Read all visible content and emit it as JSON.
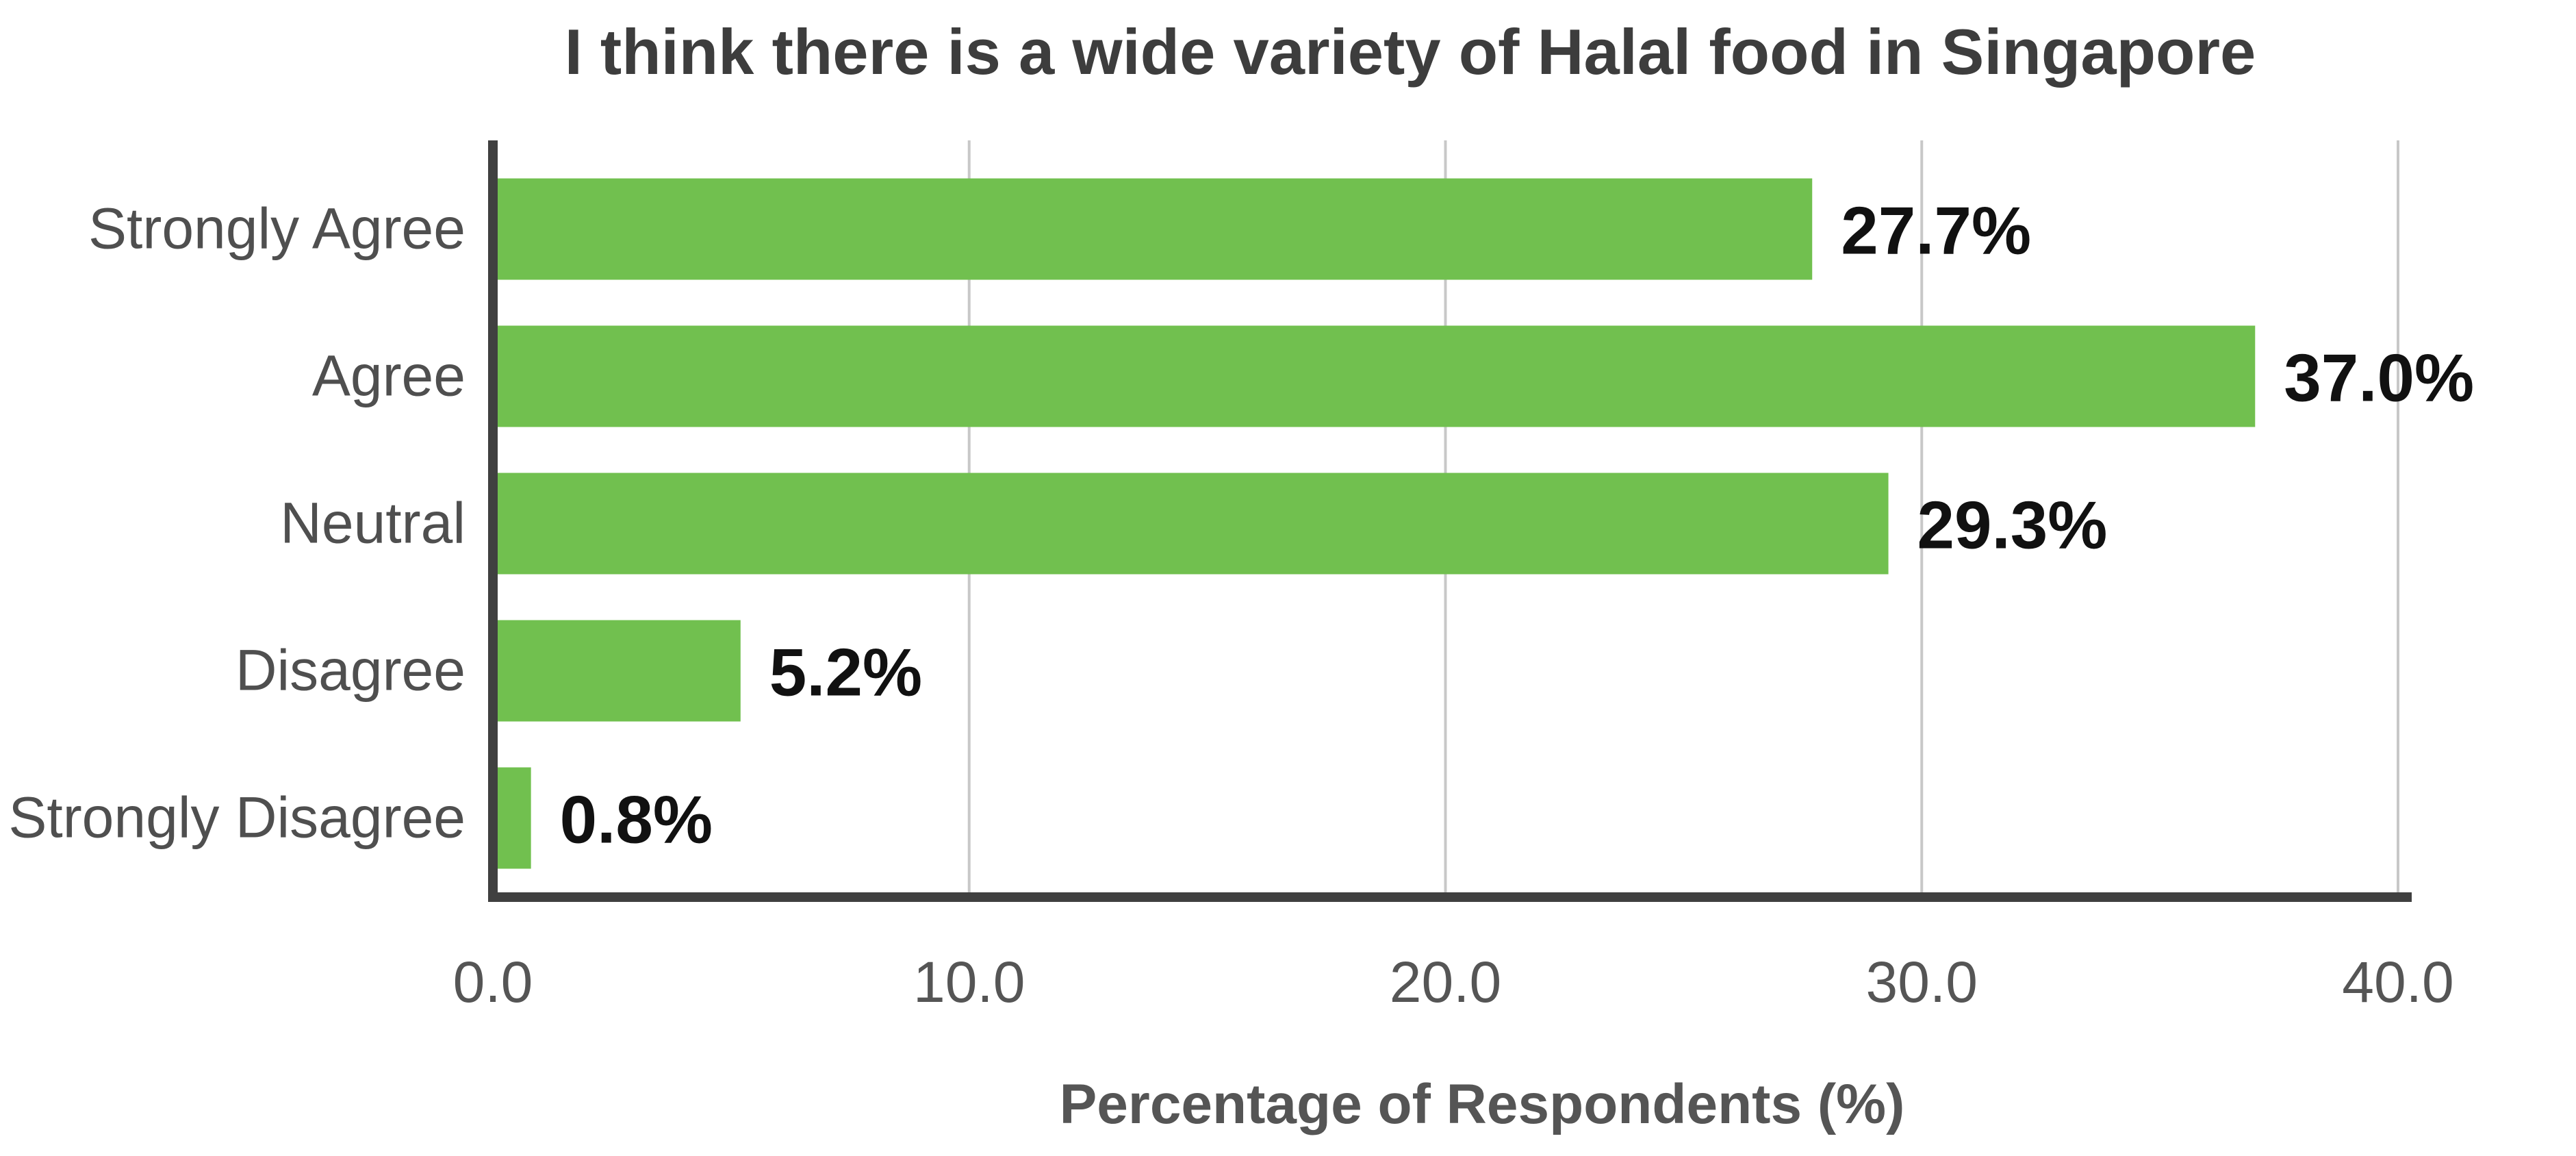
{
  "chart_data": {
    "type": "bar",
    "orientation": "horizontal",
    "title": "I think there is a wide variety of Halal food in Singapore",
    "xlabel": "Percentage of Respondents (%)",
    "ylabel": "",
    "categories": [
      "Strongly Agree",
      "Agree",
      "Neutral",
      "Disagree",
      "Strongly Disagree"
    ],
    "values": [
      27.7,
      37.0,
      29.3,
      5.2,
      0.8
    ],
    "value_labels": [
      "27.7%",
      "37.0%",
      "29.3%",
      "5.2%",
      "0.8%"
    ],
    "xlim": [
      0,
      40
    ],
    "xticks": [
      0,
      10,
      20,
      30,
      40
    ],
    "xtick_labels": [
      "0.0",
      "10.0",
      "20.0",
      "30.0",
      "40.0"
    ],
    "grid": "vertical",
    "legend": "none",
    "colors": {
      "bar": "#71c04f",
      "axis": "#404040",
      "grid": "#c8c8c8",
      "title": "#3d3d3d",
      "value_label": "#111111",
      "category_label": "#4f4f4f",
      "tick_label": "#555555"
    }
  }
}
